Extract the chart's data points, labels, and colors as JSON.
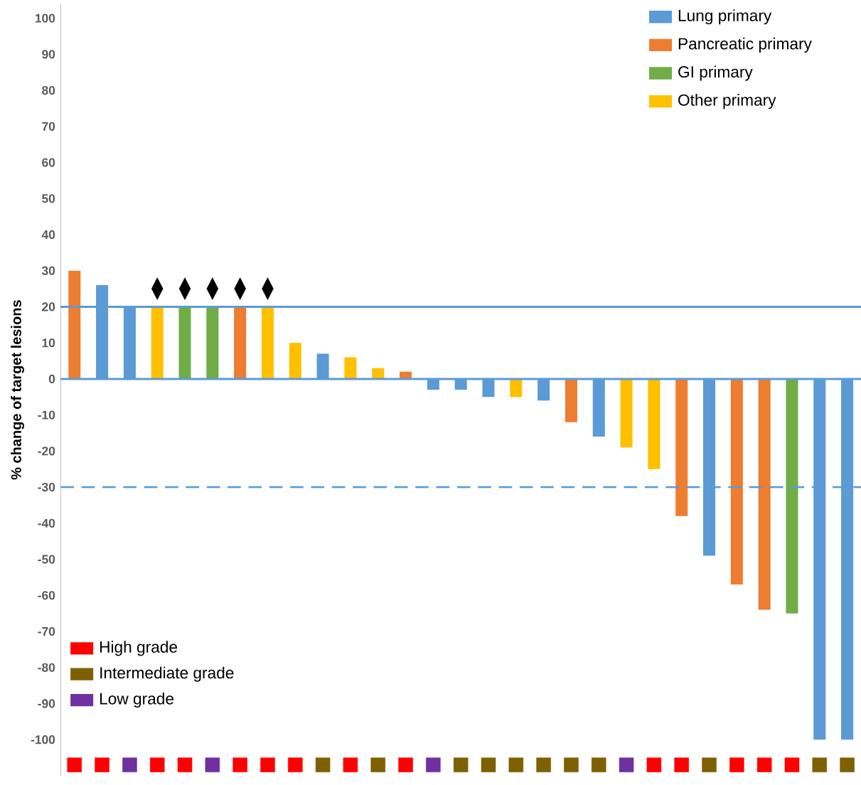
{
  "chart_data": {
    "type": "bar",
    "ylabel": "% change of target lesions",
    "categories": [
      null,
      null,
      null,
      null,
      null,
      null,
      null,
      null,
      null,
      null,
      null,
      null,
      null,
      null,
      null,
      null,
      null,
      null,
      null,
      null,
      null,
      null,
      null,
      null,
      null,
      null,
      null,
      null,
      null
    ],
    "series": [
      {
        "name": "Lung primary",
        "color": "#5b9bd5",
        "values": [
          null,
          26,
          20,
          null,
          null,
          null,
          null,
          null,
          null,
          7,
          null,
          null,
          null,
          -3,
          -3,
          -5,
          null,
          -6,
          null,
          -16,
          null,
          null,
          null,
          -49,
          null,
          null,
          null,
          -100,
          -100
        ]
      },
      {
        "name": "Pancreatic primary",
        "color": "#ed7d31",
        "values": [
          30,
          null,
          null,
          null,
          null,
          null,
          20,
          null,
          null,
          null,
          null,
          null,
          2,
          null,
          null,
          null,
          null,
          null,
          -12,
          null,
          null,
          null,
          -38,
          null,
          -57,
          -64,
          null,
          null,
          null
        ]
      },
      {
        "name": "GI primary",
        "color": "#70ad47",
        "values": [
          null,
          null,
          null,
          null,
          20,
          20,
          null,
          null,
          null,
          null,
          null,
          null,
          null,
          null,
          null,
          null,
          null,
          null,
          null,
          null,
          null,
          null,
          null,
          null,
          null,
          null,
          -65,
          null,
          null
        ]
      },
      {
        "name": "Other primary",
        "color": "#ffc000",
        "values": [
          null,
          null,
          null,
          20,
          null,
          null,
          null,
          20,
          10,
          null,
          6,
          3,
          null,
          null,
          null,
          null,
          -5,
          null,
          null,
          null,
          -19,
          -25,
          null,
          null,
          null,
          null,
          null,
          null,
          null
        ]
      },
      {
        "type": "scatter",
        "marker": "diamond",
        "color": "#000000",
        "values": [
          null,
          null,
          null,
          25,
          25,
          25,
          25,
          25,
          null,
          null,
          null,
          null,
          null,
          null,
          null,
          null,
          null,
          null,
          null,
          null,
          null,
          null,
          null,
          null,
          null,
          null,
          null,
          null,
          null
        ]
      },
      {
        "type": "scatter",
        "marker": "square",
        "name": "High grade",
        "color": "#ff0000",
        "values": [
          -107,
          -107,
          null,
          -107,
          -107,
          null,
          -107,
          -107,
          -107,
          null,
          -107,
          null,
          -107,
          null,
          null,
          null,
          null,
          null,
          null,
          null,
          null,
          -107,
          -107,
          null,
          -107,
          -107,
          -107,
          null,
          null
        ]
      },
      {
        "type": "scatter",
        "marker": "square",
        "name": "Intermediate grade",
        "color": "#7f6000",
        "values": [
          null,
          null,
          null,
          null,
          null,
          null,
          null,
          null,
          null,
          -107,
          null,
          -107,
          null,
          null,
          -107,
          -107,
          -107,
          -107,
          -107,
          -107,
          null,
          null,
          null,
          -107,
          null,
          null,
          null,
          -107,
          -107
        ]
      },
      {
        "type": "scatter",
        "marker": "square",
        "name": "Low grade",
        "color": "#7030a0",
        "values": [
          null,
          null,
          -107,
          null,
          null,
          -107,
          null,
          null,
          null,
          null,
          null,
          null,
          null,
          -107,
          null,
          null,
          null,
          null,
          null,
          null,
          -107,
          null,
          null,
          null,
          null,
          null,
          null,
          null,
          null
        ]
      }
    ],
    "ylim": [
      -110,
      104
    ],
    "yticks": [
      -100,
      -90,
      -80,
      -70,
      -60,
      -50,
      -40,
      -30,
      -20,
      -10,
      0,
      10,
      20,
      30,
      40,
      50,
      60,
      70,
      80,
      90,
      100
    ],
    "tick_labels": "y",
    "legend": "top right",
    "ref_lines": [
      {
        "axis": "y",
        "value": 0,
        "color": "#5b9bd5",
        "line_style": "solid"
      },
      {
        "axis": "y",
        "value": 20,
        "color": "#5b9bd5",
        "line_style": "solid"
      },
      {
        "axis": "y",
        "value": -30,
        "color": "#5b9bd5",
        "line_style": "dashed"
      }
    ]
  }
}
